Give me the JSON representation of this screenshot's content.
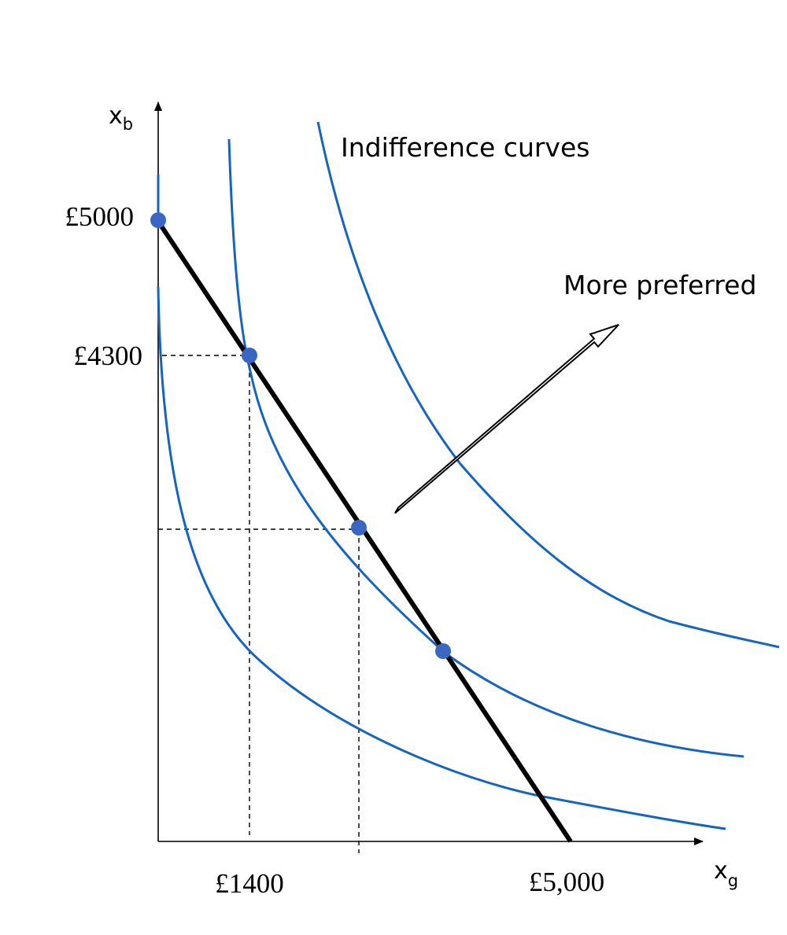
{
  "axes": {
    "y_label": "x",
    "y_label_sub": "b",
    "x_label": "x",
    "x_label_sub": "g"
  },
  "ticks": {
    "y_top": "£5000",
    "y_mid": "£4300",
    "x_left": "£1400",
    "x_right": "£5,000"
  },
  "annotations": {
    "indifference_curves": "Indifference curves",
    "more_preferred": "More preferred"
  },
  "colors": {
    "curve": "#1565c0",
    "point": "#3a66c4",
    "budget_line": "#000000",
    "axis": "#000000"
  }
}
